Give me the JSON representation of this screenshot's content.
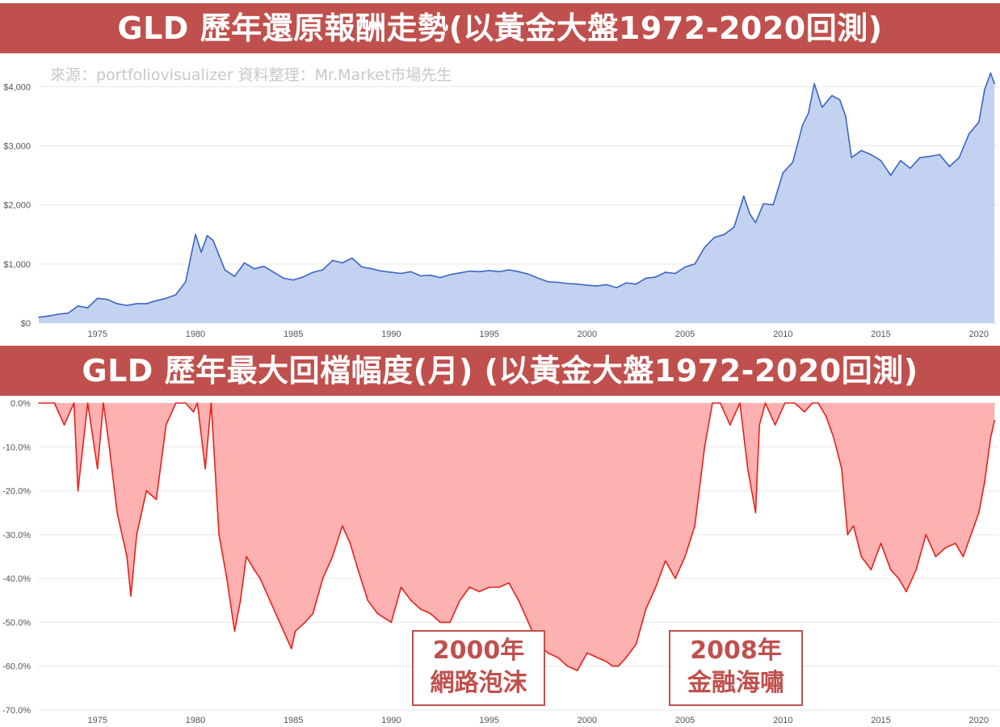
{
  "banners": {
    "top": "GLD 歷年還原報酬走勢(以黃金大盤1972-2020回測)",
    "bottom": "GLD 歷年最大回檔幅度(月) (以黃金大盤1972-2020回測)"
  },
  "source_note": "來源：portfoliovisualizer 資料整理：Mr.Market市場先生",
  "callouts": [
    {
      "year": "2000年",
      "label": "網路泡沫"
    },
    {
      "year": "2008年",
      "label": "金融海嘯"
    }
  ],
  "colors": {
    "banner": "#c0504d",
    "growth_line": "#3a66c4",
    "growth_fill": "#c3d2f0",
    "drawdown_line": "#e8211b",
    "drawdown_fill": "#fdb1b1",
    "grid": "#e6e6e6",
    "tick_text": "#555555"
  },
  "chart_data": [
    {
      "type": "area",
      "series": [
        {
          "x": [
            1972.0,
            1972.5,
            1973.0,
            1973.5,
            1974.0,
            1974.5,
            1975.0,
            1975.5,
            1976.0,
            1976.5,
            1977.0,
            1977.5,
            1978.0,
            1978.5,
            1979.0,
            1979.5,
            1980.0,
            1980.3,
            1980.6,
            1980.9,
            1981.2,
            1981.5,
            1982.0,
            1982.5,
            1983.0,
            1983.5,
            1984.0,
            1984.5,
            1985.0,
            1985.5,
            1986.0,
            1986.5,
            1987.0,
            1987.5,
            1988.0,
            1988.5,
            1989.0,
            1989.5,
            1990.0,
            1990.5,
            1991.0,
            1991.5,
            1992.0,
            1992.5,
            1993.0,
            1993.5,
            1994.0,
            1994.5,
            1995.0,
            1995.5,
            1996.0,
            1996.5,
            1997.0,
            1997.5,
            1998.0,
            1998.5,
            1999.0,
            1999.5,
            2000.0,
            2000.5,
            2001.0,
            2001.5,
            2002.0,
            2002.5,
            2003.0,
            2003.5,
            2004.0,
            2004.5,
            2005.0,
            2005.5,
            2006.0,
            2006.5,
            2007.0,
            2007.5,
            2008.0,
            2008.3,
            2008.6,
            2009.0,
            2009.5,
            2010.0,
            2010.5,
            2011.0,
            2011.3,
            2011.6,
            2012.0,
            2012.5,
            2012.9,
            2013.2,
            2013.5,
            2014.0,
            2014.5,
            2015.0,
            2015.5,
            2016.0,
            2016.5,
            2017.0,
            2017.5,
            2018.0,
            2018.5,
            2019.0,
            2019.5,
            2020.0,
            2020.3,
            2020.6,
            2020.8
          ],
          "values": [
            100,
            120,
            150,
            170,
            290,
            260,
            420,
            400,
            330,
            300,
            330,
            330,
            380,
            420,
            480,
            700,
            1500,
            1200,
            1480,
            1400,
            1150,
            900,
            790,
            1020,
            920,
            960,
            860,
            760,
            730,
            780,
            860,
            900,
            1060,
            1020,
            1100,
            950,
            920,
            880,
            860,
            840,
            870,
            800,
            810,
            770,
            820,
            850,
            880,
            870,
            890,
            870,
            900,
            870,
            830,
            760,
            700,
            690,
            670,
            660,
            640,
            630,
            650,
            600,
            680,
            660,
            760,
            780,
            860,
            840,
            950,
            1000,
            1280,
            1450,
            1500,
            1620,
            2150,
            1850,
            1700,
            2020,
            2000,
            2540,
            2720,
            3350,
            3550,
            4050,
            3650,
            3850,
            3780,
            3500,
            2800,
            2920,
            2850,
            2750,
            2500,
            2750,
            2620,
            2800,
            2820,
            2850,
            2650,
            2800,
            3200,
            3400,
            3950,
            4230,
            4050
          ],
          "values_note": null
        }
      ],
      "ylim": [
        0,
        4400
      ],
      "xlim": [
        1972,
        2021
      ],
      "y_ticks": [
        "$0",
        "$1,000",
        "$2,000",
        "$3,000",
        "$4,000"
      ],
      "x_ticks": [
        "1975",
        "1980",
        "1985",
        "1990",
        "1995",
        "2000",
        "2005",
        "2010",
        "2015",
        "2020"
      ],
      "grid": true
    },
    {
      "type": "area",
      "series": [
        {
          "x": [
            1972.0,
            1972.8,
            1973.3,
            1973.8,
            1974.0,
            1974.5,
            1975.0,
            1975.3,
            1975.6,
            1976.0,
            1976.5,
            1976.7,
            1977.0,
            1977.5,
            1978.0,
            1978.5,
            1979.0,
            1979.5,
            1979.9,
            1980.1,
            1980.5,
            1980.8,
            1981.2,
            1981.6,
            1982.0,
            1982.3,
            1982.6,
            1983.0,
            1983.3,
            1983.8,
            1984.3,
            1984.9,
            1985.1,
            1985.6,
            1986.0,
            1986.5,
            1987.0,
            1987.5,
            1987.9,
            1988.3,
            1988.8,
            1989.3,
            1990.0,
            1990.5,
            1991.0,
            1991.5,
            1992.0,
            1992.5,
            1993.0,
            1993.5,
            1994.0,
            1994.5,
            1995.0,
            1995.5,
            1996.0,
            1996.5,
            1997.0,
            1997.5,
            1998.0,
            1998.5,
            1999.0,
            1999.5,
            2000.0,
            2000.5,
            2001.0,
            2001.3,
            2001.6,
            2002.0,
            2002.5,
            2003.0,
            2003.5,
            2004.0,
            2004.5,
            2005.0,
            2005.5,
            2006.0,
            2006.4,
            2006.8,
            2007.3,
            2007.8,
            2008.2,
            2008.6,
            2008.8,
            2009.1,
            2009.6,
            2010.1,
            2010.6,
            2011.1,
            2011.5,
            2011.8,
            2012.2,
            2012.6,
            2013.0,
            2013.3,
            2013.6,
            2014.0,
            2014.5,
            2015.0,
            2015.5,
            2015.9,
            2016.3,
            2016.8,
            2017.3,
            2017.8,
            2018.3,
            2018.8,
            2019.2,
            2019.6,
            2020.0,
            2020.3,
            2020.6,
            2020.8
          ],
          "values": [
            0,
            0,
            -5,
            0,
            -20,
            0,
            -15,
            0,
            -10,
            -25,
            -35,
            -44,
            -30,
            -20,
            -22,
            -5,
            0,
            0,
            -2,
            0,
            -15,
            0,
            -30,
            -40,
            -52,
            -45,
            -35,
            -38,
            -40,
            -45,
            -50,
            -56,
            -52,
            -50,
            -48,
            -40,
            -35,
            -28,
            -32,
            -38,
            -45,
            -48,
            -50,
            -42,
            -45,
            -47,
            -48,
            -50,
            -50,
            -45,
            -42,
            -43,
            -42,
            -42,
            -41,
            -45,
            -50,
            -55,
            -57,
            -58,
            -60,
            -61,
            -57,
            -58,
            -59,
            -60,
            -60,
            -58,
            -55,
            -47,
            -42,
            -36,
            -40,
            -35,
            -28,
            -10,
            0,
            0,
            -5,
            0,
            -15,
            -25,
            -5,
            0,
            -5,
            0,
            0,
            -2,
            0,
            0,
            -3,
            -8,
            -15,
            -30,
            -28,
            -35,
            -38,
            -32,
            -38,
            -40,
            -43,
            -38,
            -30,
            -35,
            -33,
            -32,
            -35,
            -30,
            -25,
            -18,
            -8,
            -4
          ],
          "values_note": null
        }
      ],
      "ylim": [
        -70,
        0
      ],
      "xlim": [
        1972,
        2021
      ],
      "y_ticks": [
        "0.0%",
        "-10.0%",
        "-20.0%",
        "-30.0%",
        "-40.0%",
        "-50.0%",
        "-60.0%",
        "-70.0%"
      ],
      "x_ticks": [
        "1975",
        "1980",
        "1985",
        "1990",
        "1995",
        "2000",
        "2005",
        "2010",
        "2015",
        "2020"
      ],
      "grid": true
    }
  ]
}
